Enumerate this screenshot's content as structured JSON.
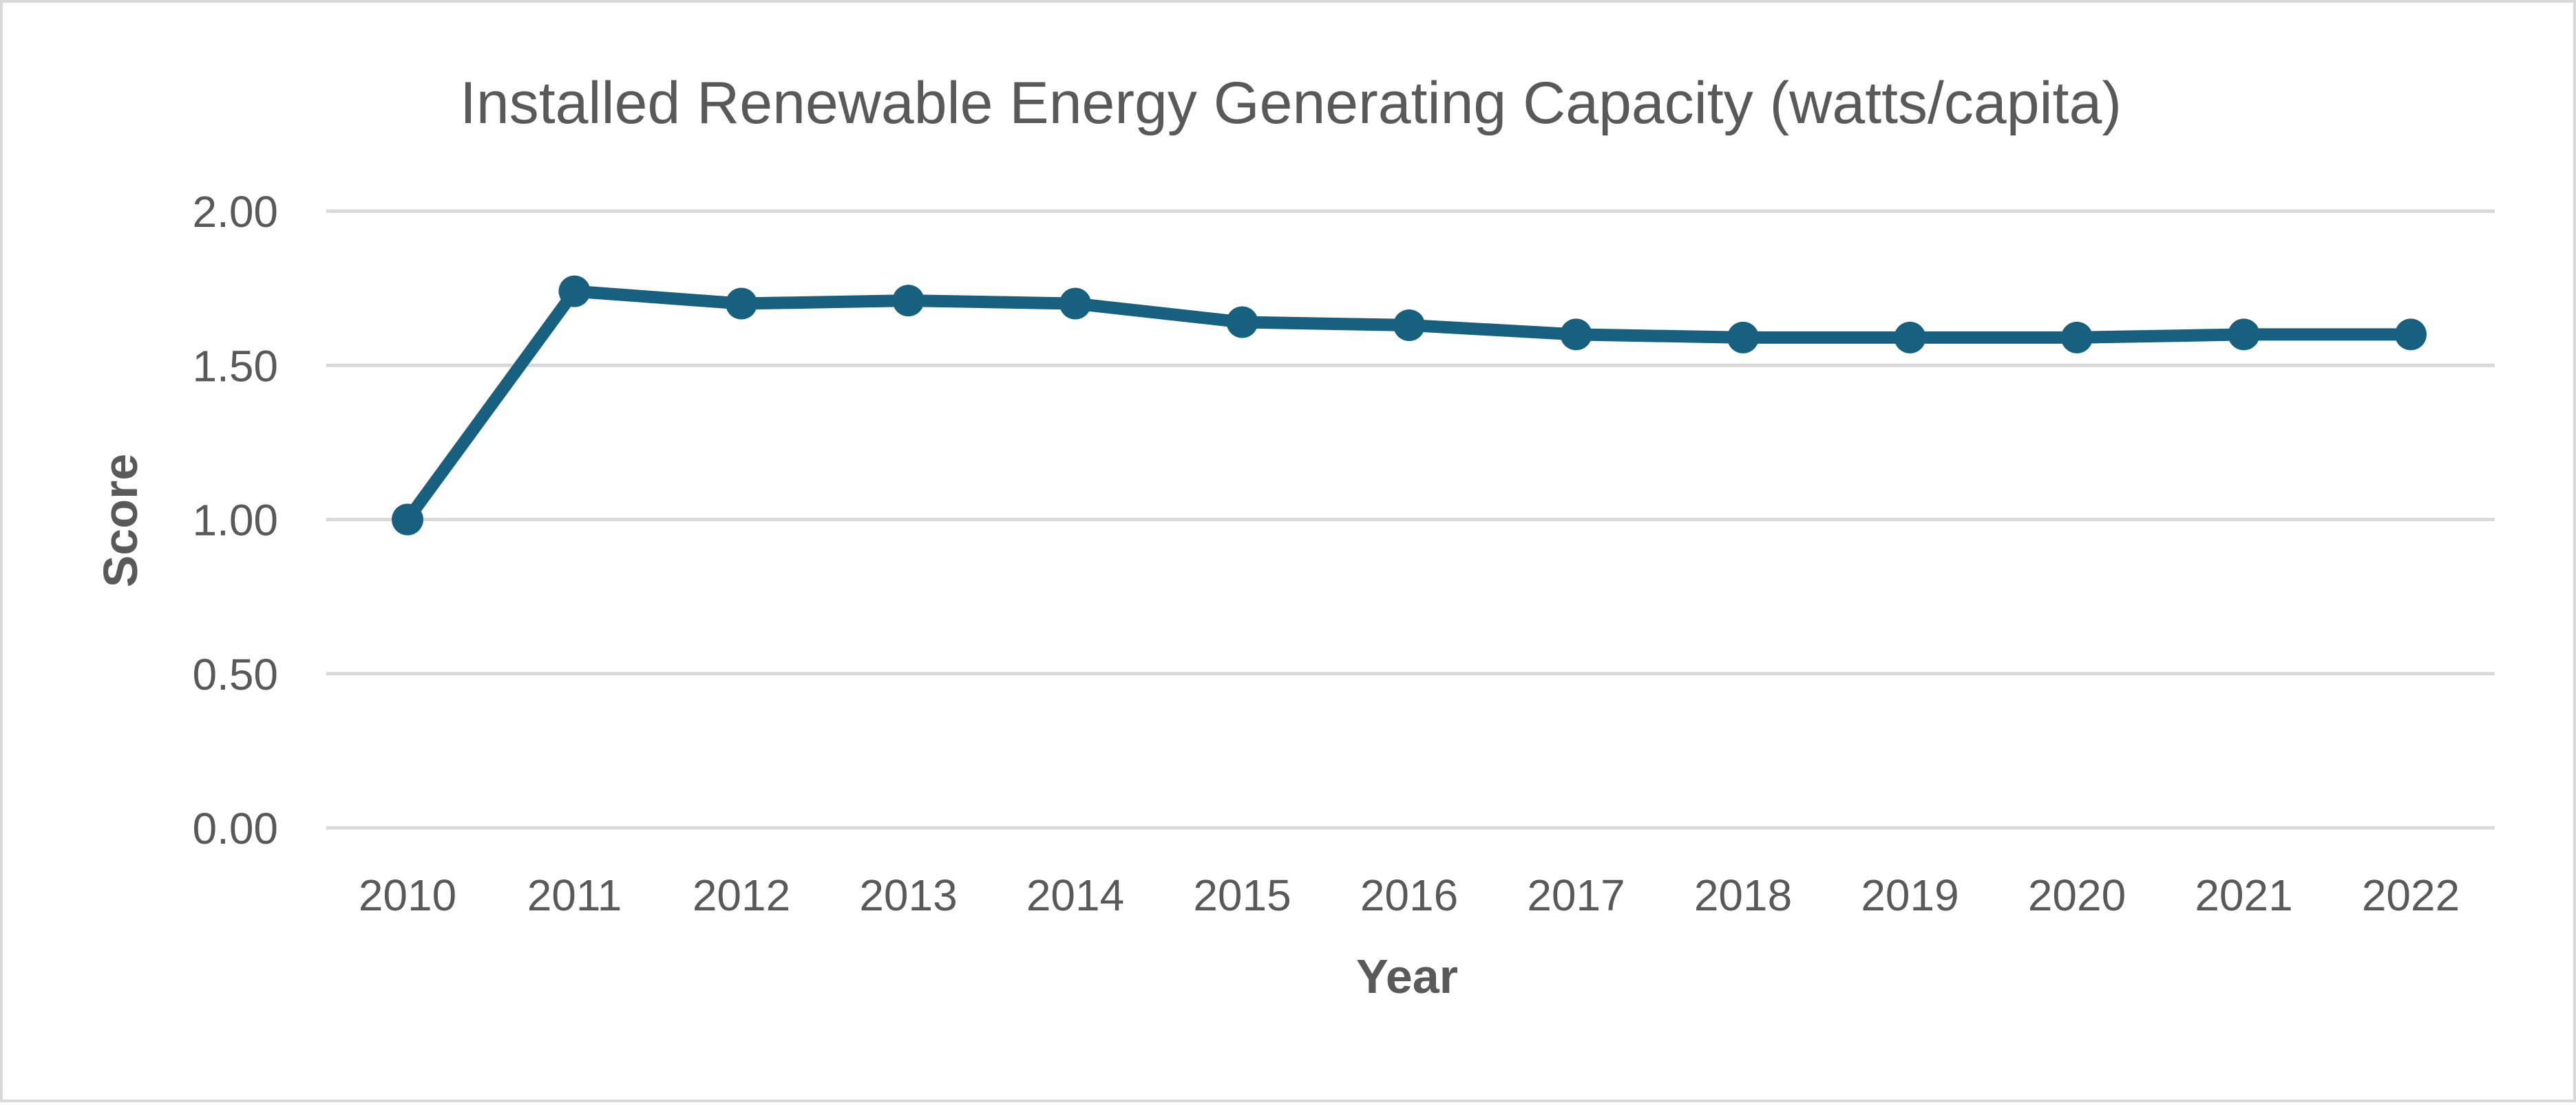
{
  "chart_data": {
    "type": "line",
    "title": "Installed Renewable Energy Generating Capacity (watts/capita)",
    "xlabel": "Year",
    "ylabel": "Score",
    "categories": [
      "2010",
      "2011",
      "2012",
      "2013",
      "2014",
      "2015",
      "2016",
      "2017",
      "2018",
      "2019",
      "2020",
      "2021",
      "2022"
    ],
    "series": [
      {
        "name": "Score",
        "values": [
          1.0,
          1.74,
          1.7,
          1.71,
          1.7,
          1.64,
          1.63,
          1.6,
          1.59,
          1.59,
          1.59,
          1.6,
          1.6
        ],
        "color": "#17607f"
      }
    ],
    "ylim": [
      0,
      2
    ],
    "yticks": [
      "0.00",
      "0.50",
      "1.00",
      "1.50",
      "2.00"
    ],
    "ytick_values": [
      0,
      0.5,
      1,
      1.5,
      2
    ],
    "grid": true,
    "legend": "none"
  }
}
